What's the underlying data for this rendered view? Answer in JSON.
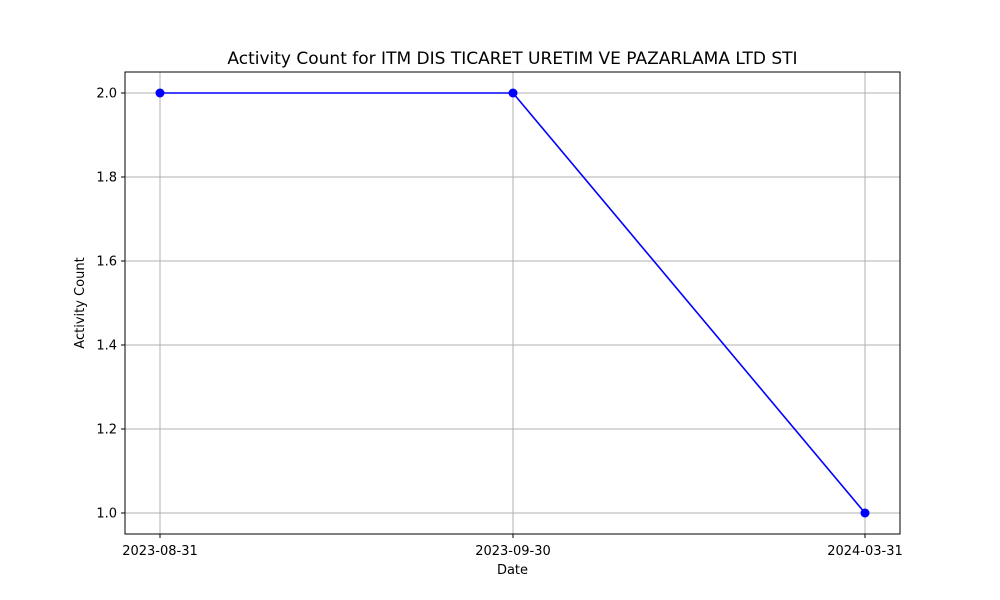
{
  "chart_data": {
    "type": "line",
    "title": "Activity Count for ITM DIS TICARET URETIM VE PAZARLAMA LTD STI",
    "xlabel": "Date",
    "ylabel": "Activity Count",
    "categories": [
      "2023-08-31",
      "2023-09-30",
      "2024-03-31"
    ],
    "series": [
      {
        "name": "Activity Count",
        "values": [
          2,
          2,
          1
        ]
      }
    ],
    "ylim": [
      0.95,
      2.05
    ],
    "yticks": [
      1.0,
      1.2,
      1.4,
      1.6,
      1.8,
      2.0
    ],
    "ytick_labels": [
      "1.0",
      "1.2",
      "1.4",
      "1.6",
      "1.8",
      "2.0"
    ],
    "grid": true,
    "marker": "circle",
    "line_color": "#0000ff",
    "grid_color": "#b0b0b0"
  }
}
